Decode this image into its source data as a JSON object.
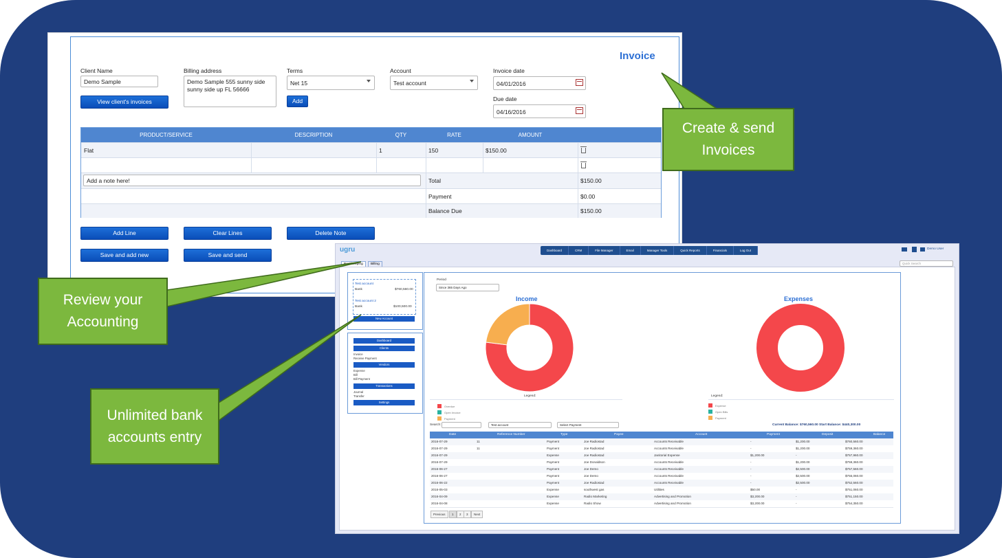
{
  "invoice": {
    "title": "Invoice",
    "client_name_label": "Client Name",
    "client_name_value": "Demo Sample",
    "view_invoices_button": "View client's invoices",
    "billing_address_label": "Billing address",
    "billing_address_value": "Demo Sample 555 sunny side sunny side up FL 56666",
    "terms_label": "Terms",
    "terms_value": "Net 15",
    "add_button": "Add",
    "account_label": "Account",
    "account_value": "Test account",
    "invoice_date_label": "Invoice date",
    "invoice_date_value": "04/01/2016",
    "due_date_label": "Due date",
    "due_date_value": "04/16/2016",
    "table": {
      "headers": [
        "PRODUCT/SERVICE",
        "DESCRIPTION",
        "QTY",
        "RATE",
        "AMOUNT"
      ],
      "rows": [
        {
          "product": "Flat",
          "description": "",
          "qty": "1",
          "rate": "150",
          "amount": "$150.00"
        },
        {
          "product": "",
          "description": "",
          "qty": "",
          "rate": "",
          "amount": ""
        }
      ],
      "note_placeholder": "Add a note here!",
      "total_label": "Total",
      "total_value": "$150.00",
      "payment_label": "Payment",
      "payment_value": "$0.00",
      "balance_label": "Balance Due",
      "balance_value": "$150.00"
    },
    "buttons": {
      "add_line": "Add Line",
      "clear_lines": "Clear Lines",
      "delete_note": "Delete Note",
      "save_add_new": "Save and add new",
      "save_send": "Save and send"
    }
  },
  "callouts": {
    "create": "Create & send Invoices",
    "review": "Review your Accounting",
    "unlimited": "Unlimited bank accounts entry"
  },
  "accounting": {
    "logo": "ugru",
    "nav": [
      "Dashboard",
      "CRM",
      "File Manager",
      "Email",
      "Manager Tools",
      "Quick Reports",
      "Financials",
      "Log Out"
    ],
    "user": "Demo User",
    "search_placeholder": "Quick Search",
    "tabs": [
      "Bookkeeping",
      "Billing"
    ],
    "accounts": [
      {
        "name": "Test account",
        "type": "Bank",
        "balance": "$760,560.00"
      },
      {
        "name": "Test account 2",
        "type": "Bank",
        "balance": "$100,500.00"
      }
    ],
    "new_account": "New Account",
    "menu": {
      "dashboard": "Dashboard",
      "clients": "Clients",
      "client_items": [
        "Invoice",
        "Receive Payment"
      ],
      "vendors": "Vendors",
      "vendor_items": [
        "Expense",
        "Bill",
        "Bill Payment"
      ],
      "transactions": "Transactions",
      "transaction_items": [
        "Journal",
        "Transfer"
      ],
      "settings": "Settings"
    },
    "period_label": "Period",
    "period_value": "Since 365 Days Ago",
    "income_title": "Income",
    "expenses_title": "Expenses",
    "legend_label": "Legend:",
    "income_legend": [
      "Overdue",
      "Open Invoice",
      "Payment"
    ],
    "expense_legend": [
      "Expense",
      "Open Bills",
      "Payment"
    ],
    "colors": {
      "red": "#f4474b",
      "orange": "#f7ae4f",
      "teal": "#2ab3a0"
    },
    "current_balance": "Current Balance: $760,560.00   Start Balance: $440,300.00",
    "search_label": "Search:",
    "filter_account": "Test account",
    "filter_type": "Select Payment",
    "columns": [
      "Date",
      "Reference Number",
      "Type",
      "Payee",
      "Account",
      "Payment",
      "Deposit",
      "Balance"
    ],
    "rows": [
      [
        "2016-07-29",
        "11",
        "Payment",
        "Joe Radiostad",
        "Accounts Receivable",
        "-",
        "$1,200.00",
        "$760,560.00"
      ],
      [
        "2016-07-29",
        "11",
        "Payment",
        "Joe Radiostad",
        "Accounts Receivable",
        "-",
        "$1,200.00",
        "$759,360.00"
      ],
      [
        "2016-07-29",
        "",
        "Expense",
        "Joe Radiostad",
        "Janitorial Expense",
        "$1,200.00",
        "-",
        "$757,960.00"
      ],
      [
        "2016-07-29",
        "",
        "Payment",
        "Joe Donaldson",
        "Accounts Receivable",
        "-",
        "$1,200.00",
        "$759,360.00"
      ],
      [
        "2016-06-27",
        "",
        "Payment",
        "Joe Demo",
        "Accounts Receivable",
        "-",
        "$2,500.00",
        "$757,560.00"
      ],
      [
        "2016-06-27",
        "",
        "Payment",
        "Joe Demo",
        "Accounts Receivable",
        "-",
        "$2,500.00",
        "$755,060.00"
      ],
      [
        "2016-06-22",
        "",
        "Payment",
        "Joe Radiostad",
        "Accounts Receivable",
        "-",
        "$2,500.00",
        "$752,560.00"
      ],
      [
        "2016-05-03",
        "",
        "Expense",
        "southwest gas",
        "Utilities",
        "$50.00",
        "-",
        "$751,060.00"
      ],
      [
        "2016-04-09",
        "",
        "Expense",
        "Radio Marketing",
        "Advertising and Promotion",
        "$3,200.00",
        "-",
        "$751,150.00"
      ],
      [
        "2016-04-08",
        "",
        "Expense",
        "Radio Show",
        "Advertising and Promotion",
        "$3,200.00",
        "-",
        "$754,350.00"
      ]
    ],
    "pagination": [
      "Previous",
      "1",
      "2",
      "3",
      "Next"
    ],
    "income_chart": {
      "type": "pie",
      "slices": [
        {
          "label": "Overdue",
          "value": 77
        },
        {
          "label": "Payment",
          "value": 23
        }
      ]
    },
    "expense_chart": {
      "type": "pie",
      "slices": [
        {
          "label": "Expense",
          "value": 100
        }
      ]
    }
  }
}
